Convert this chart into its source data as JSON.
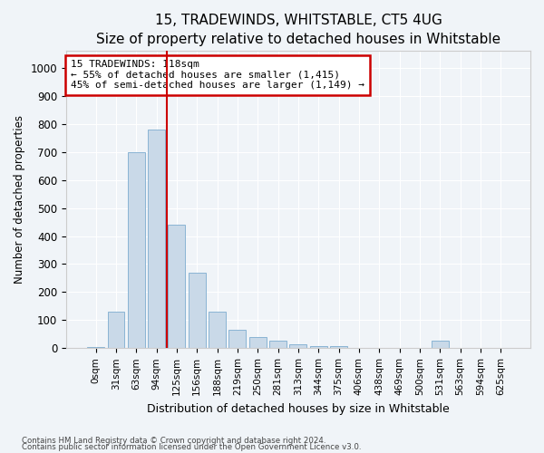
{
  "title1": "15, TRADEWINDS, WHITSTABLE, CT5 4UG",
  "title2": "Size of property relative to detached houses in Whitstable",
  "xlabel": "Distribution of detached houses by size in Whitstable",
  "ylabel": "Number of detached properties",
  "bar_labels": [
    "0sqm",
    "31sqm",
    "63sqm",
    "94sqm",
    "125sqm",
    "156sqm",
    "188sqm",
    "219sqm",
    "250sqm",
    "281sqm",
    "313sqm",
    "344sqm",
    "375sqm",
    "406sqm",
    "438sqm",
    "469sqm",
    "500sqm",
    "531sqm",
    "563sqm",
    "594sqm",
    "625sqm"
  ],
  "bar_values": [
    5,
    130,
    700,
    780,
    440,
    270,
    130,
    65,
    40,
    28,
    15,
    8,
    8,
    0,
    0,
    0,
    0,
    28,
    0,
    0,
    0
  ],
  "bar_color": "#c9d9e8",
  "bar_edge_color": "#8ab4d4",
  "marker_label": "15 TRADEWINDS: 118sqm",
  "annotation_line1": "← 55% of detached houses are smaller (1,415)",
  "annotation_line2": "45% of semi-detached houses are larger (1,149) →",
  "vline_color": "#cc0000",
  "annotation_box_edge": "#cc0000",
  "vline_x": 3.5,
  "ylim": [
    0,
    1060
  ],
  "yticks": [
    0,
    100,
    200,
    300,
    400,
    500,
    600,
    700,
    800,
    900,
    1000
  ],
  "footnote1": "Contains HM Land Registry data © Crown copyright and database right 2024.",
  "footnote2": "Contains public sector information licensed under the Open Government Licence v3.0.",
  "bg_color": "#f0f4f8",
  "plot_bg_color": "#f0f4f8",
  "grid_color": "#ffffff",
  "title1_fontsize": 11,
  "title2_fontsize": 10
}
